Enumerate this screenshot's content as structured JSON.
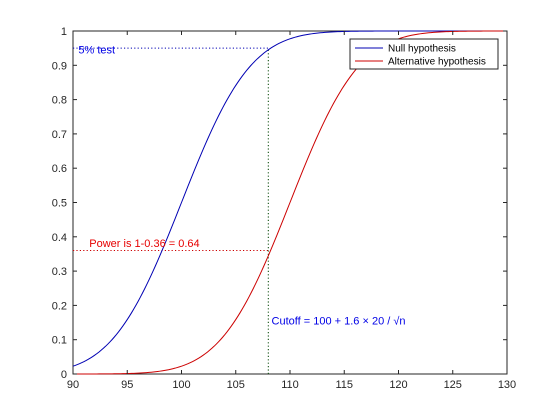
{
  "chart_data": {
    "type": "line",
    "title": "",
    "xlabel": "",
    "ylabel": "",
    "xlim": [
      90,
      130
    ],
    "ylim": [
      0,
      1
    ],
    "x_ticks": [
      90,
      95,
      100,
      105,
      110,
      115,
      120,
      125,
      130
    ],
    "y_ticks": [
      0,
      0.1,
      0.2,
      0.3,
      0.4,
      0.5,
      0.6,
      0.7,
      0.8,
      0.9,
      1
    ],
    "grid": false,
    "legend_position": "top-right",
    "series": [
      {
        "name": "Null hypothesis",
        "color": "#0000b3",
        "distribution": "normal-cdf",
        "mean": 100,
        "sd": 5,
        "x": [
          90,
          92,
          94,
          96,
          98,
          100,
          102,
          104,
          106,
          108,
          110,
          112,
          114,
          116,
          118,
          120,
          122,
          124,
          126,
          128,
          130
        ],
        "values": [
          0.023,
          0.055,
          0.115,
          0.212,
          0.345,
          0.5,
          0.655,
          0.788,
          0.885,
          0.945,
          0.977,
          0.992,
          0.997,
          0.999,
          1.0,
          1.0,
          1.0,
          1.0,
          1.0,
          1.0,
          1.0
        ]
      },
      {
        "name": "Alternative hypothesis",
        "color": "#cc0000",
        "distribution": "normal-cdf",
        "mean": 110,
        "sd": 5,
        "x": [
          90,
          92,
          94,
          96,
          98,
          100,
          102,
          104,
          106,
          108,
          110,
          112,
          114,
          116,
          118,
          120,
          122,
          124,
          126,
          128,
          130
        ],
        "values": [
          0.0,
          0.0,
          0.001,
          0.003,
          0.008,
          0.023,
          0.055,
          0.115,
          0.212,
          0.345,
          0.5,
          0.655,
          0.788,
          0.885,
          0.945,
          0.977,
          0.992,
          0.997,
          0.999,
          1.0,
          1.0
        ]
      }
    ],
    "reference_lines": {
      "test_level_y": 0.95,
      "power_y": 0.36,
      "cutoff_x": 108
    },
    "annotations": {
      "test_level": {
        "text": "5% test",
        "color": "#0000e6",
        "x": 90.5,
        "y": 0.935
      },
      "power": {
        "text": "Power is 1-0.36 = 0.64",
        "color": "#e60000",
        "x": 91.5,
        "y": 0.37
      },
      "cutoff": {
        "text": "Cutoff = 100 + 1.6 × 20 / √n",
        "color": "#0000e6",
        "x": 108.3,
        "y": 0.145
      }
    }
  }
}
